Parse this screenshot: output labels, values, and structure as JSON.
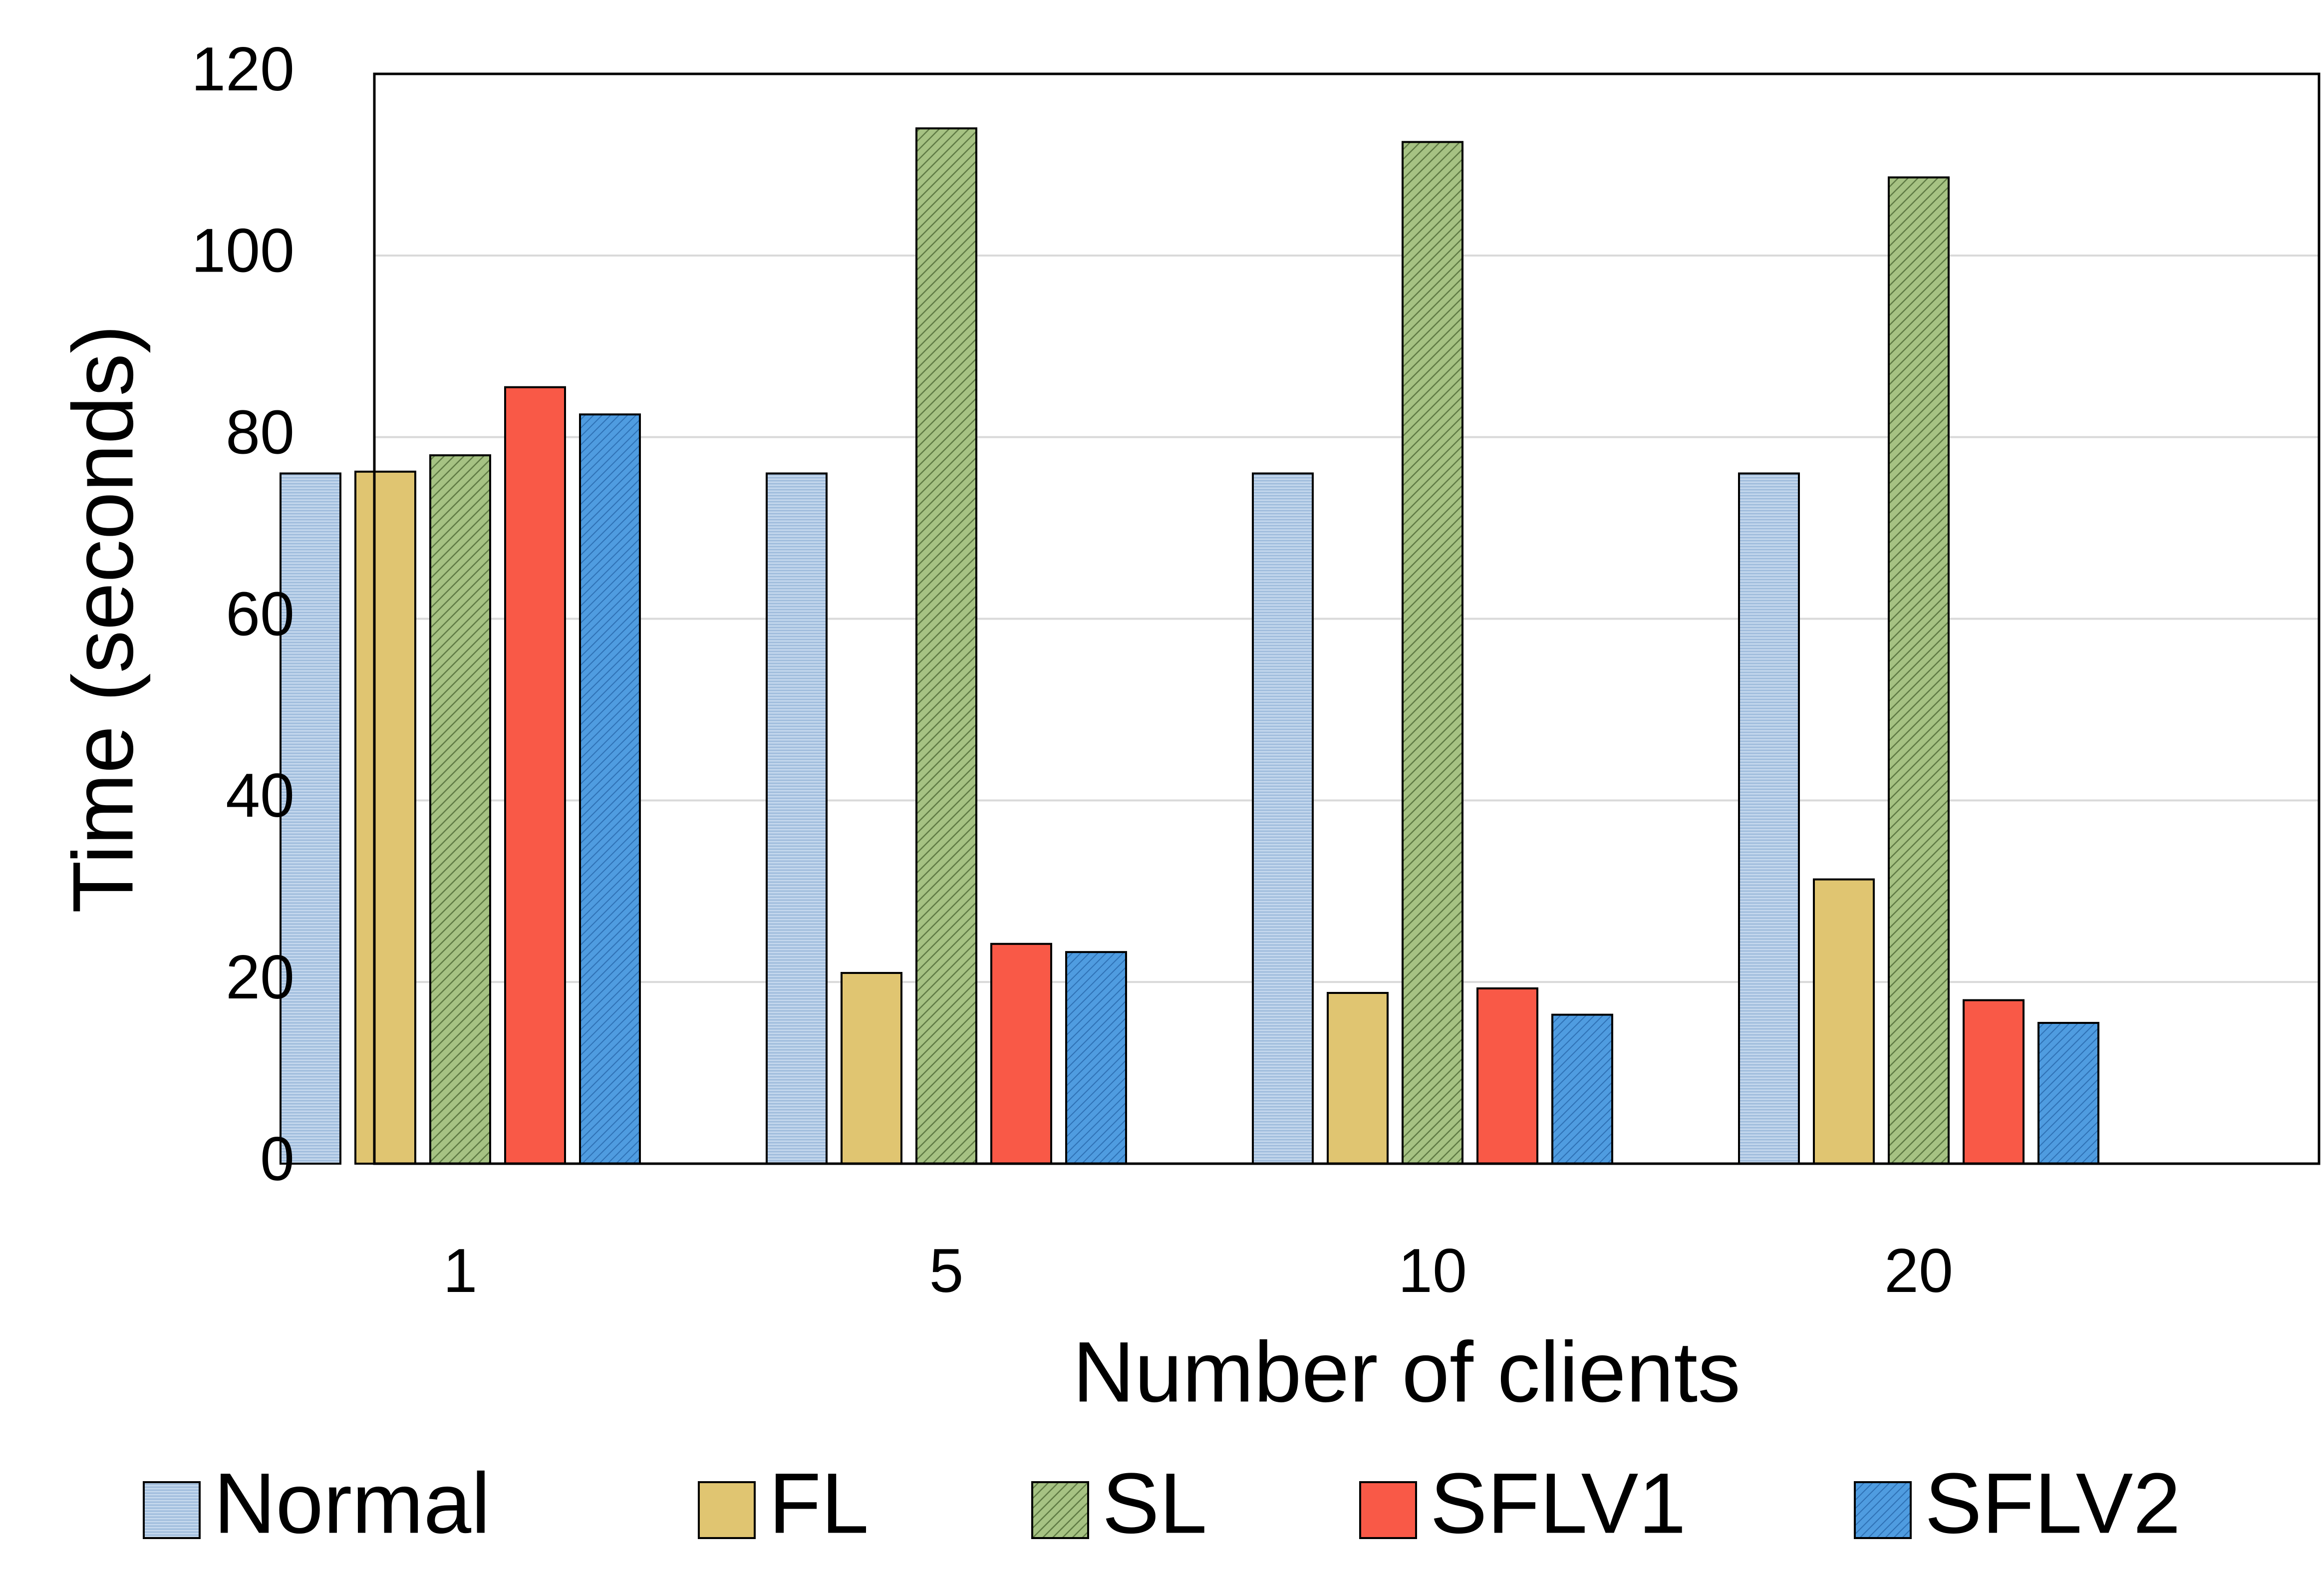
{
  "chart_data": {
    "type": "bar",
    "xlabel": "Number of clients",
    "ylabel": "Time (seconds)",
    "categories": [
      "1",
      "5",
      "10",
      "20"
    ],
    "ylim": [
      0,
      120
    ],
    "yticks": [
      0,
      20,
      40,
      60,
      80,
      100,
      120
    ],
    "grid": true,
    "legend_position": "bottom",
    "series": [
      {
        "name": "Normal",
        "color": "#bdd3ea",
        "pattern": "horizontal-lines",
        "values": [
          76,
          76,
          76,
          76
        ]
      },
      {
        "name": "FL",
        "color": "#e0c571",
        "pattern": "solid",
        "values": [
          76.2,
          21,
          18.8,
          31.3
        ]
      },
      {
        "name": "SL",
        "color": "#9bb87a",
        "pattern": "diagonal-hatch",
        "values": [
          78,
          114,
          112.5,
          108.6
        ]
      },
      {
        "name": "SFLV1",
        "color": "#f95947",
        "pattern": "solid",
        "values": [
          85.5,
          24.2,
          19.3,
          18
        ]
      },
      {
        "name": "SFLV2",
        "color": "#4b97dc",
        "pattern": "fine-dots",
        "values": [
          82.5,
          23.3,
          16.4,
          15.5
        ]
      }
    ]
  }
}
